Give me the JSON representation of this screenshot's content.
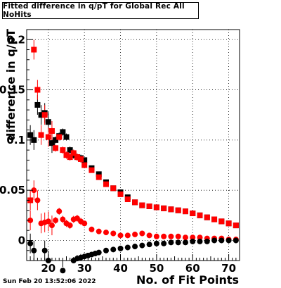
{
  "title": "Fitted difference in q/pT  for Global Rec All NoHits",
  "timestamp": "Sun Feb 20 13:52:06 2022",
  "chart_data": {
    "type": "scatter",
    "title": "Fitted difference in q/pT  for Global Rec All NoHits",
    "xlabel": "No. of Fit Points",
    "ylabel": "difference in q/pT",
    "xlim": [
      14,
      73
    ],
    "ylim": [
      -0.02,
      0.21
    ],
    "xticks": [
      20,
      30,
      40,
      50,
      60,
      70
    ],
    "xtick_labels": [
      "20",
      "30",
      "40",
      "50",
      "60",
      "70"
    ],
    "yticks": [
      0,
      0.05,
      0.1,
      0.15,
      0.2
    ],
    "ytick_labels": [
      "0",
      "0.05",
      "0.1",
      "0.15",
      "0.2"
    ],
    "grid": true,
    "colors": {
      "red": "#ff0000",
      "black": "#000000"
    },
    "series": [
      {
        "color": "#000000",
        "marker": "square",
        "x": [
          15,
          16,
          17,
          18,
          19,
          20,
          21,
          22,
          23,
          24,
          25,
          26,
          27,
          28,
          29,
          30,
          32,
          34,
          36,
          38,
          40,
          42,
          44,
          46,
          48,
          50,
          52,
          54,
          56,
          58,
          60,
          62,
          64,
          66,
          68,
          70,
          72
        ],
        "y": [
          0.105,
          0.1,
          0.135,
          0.125,
          0.127,
          0.118,
          0.097,
          0.1,
          0.104,
          0.108,
          0.103,
          0.09,
          0.085,
          0.083,
          0.082,
          0.08,
          0.072,
          0.066,
          0.058,
          0.052,
          0.048,
          0.043,
          0.038,
          0.035,
          0.034,
          0.033,
          0.032,
          0.031,
          0.03,
          0.029,
          0.027,
          0.025,
          0.023,
          0.021,
          0.019,
          0.017,
          0.015
        ]
      },
      {
        "color": "#ff0000",
        "marker": "square",
        "x": [
          15,
          16,
          17,
          18,
          19,
          20,
          21,
          22,
          23,
          24,
          25,
          26,
          27,
          28,
          29,
          30,
          32,
          34,
          36,
          38,
          40,
          42,
          44,
          46,
          48,
          50,
          52,
          54,
          56,
          58,
          60,
          62,
          64,
          66,
          68,
          70,
          72
        ],
        "y": [
          0.04,
          0.19,
          0.15,
          0.105,
          0.125,
          0.103,
          0.109,
          0.092,
          0.103,
          0.09,
          0.085,
          0.083,
          0.087,
          0.083,
          0.081,
          0.075,
          0.07,
          0.063,
          0.056,
          0.052,
          0.046,
          0.041,
          0.038,
          0.035,
          0.034,
          0.033,
          0.032,
          0.031,
          0.03,
          0.029,
          0.027,
          0.025,
          0.023,
          0.021,
          0.019,
          0.017,
          0.015
        ]
      },
      {
        "color": "#ff0000",
        "marker": "circle",
        "x": [
          15,
          16,
          17,
          18,
          19,
          20,
          21,
          22,
          23,
          24,
          25,
          26,
          27,
          28,
          29,
          30,
          32,
          34,
          36,
          38,
          40,
          42,
          44,
          46,
          48,
          50,
          52,
          54,
          56,
          58,
          60,
          62,
          64,
          66,
          68,
          70,
          72
        ],
        "y": [
          0.02,
          0.05,
          0.04,
          0.017,
          0.018,
          0.019,
          0.015,
          0.02,
          0.029,
          0.021,
          0.017,
          0.015,
          0.021,
          0.022,
          0.019,
          0.017,
          0.011,
          0.009,
          0.008,
          0.007,
          0.005,
          0.005,
          0.006,
          0.007,
          0.005,
          0.004,
          0.004,
          0.004,
          0.004,
          0.003,
          0.003,
          0.003,
          0.002,
          0.002,
          0.002,
          0.001,
          0.001
        ]
      },
      {
        "color": "#000000",
        "marker": "circle",
        "x": [
          15,
          16,
          19,
          20,
          24,
          27,
          28,
          29,
          30,
          31,
          32,
          33,
          34,
          36,
          38,
          40,
          42,
          44,
          46,
          48,
          50,
          52,
          54,
          56,
          58,
          60,
          62,
          64,
          66,
          68,
          70,
          72
        ],
        "y": [
          -0.003,
          -0.01,
          -0.01,
          -0.02,
          -0.03,
          -0.02,
          -0.018,
          -0.017,
          -0.016,
          -0.015,
          -0.014,
          -0.013,
          -0.012,
          -0.01,
          -0.009,
          -0.008,
          -0.007,
          -0.006,
          -0.005,
          -0.004,
          -0.003,
          -0.003,
          -0.002,
          -0.002,
          -0.002,
          -0.001,
          -0.001,
          -0.001,
          0.0,
          0.0,
          0.0,
          0.0
        ]
      }
    ]
  }
}
